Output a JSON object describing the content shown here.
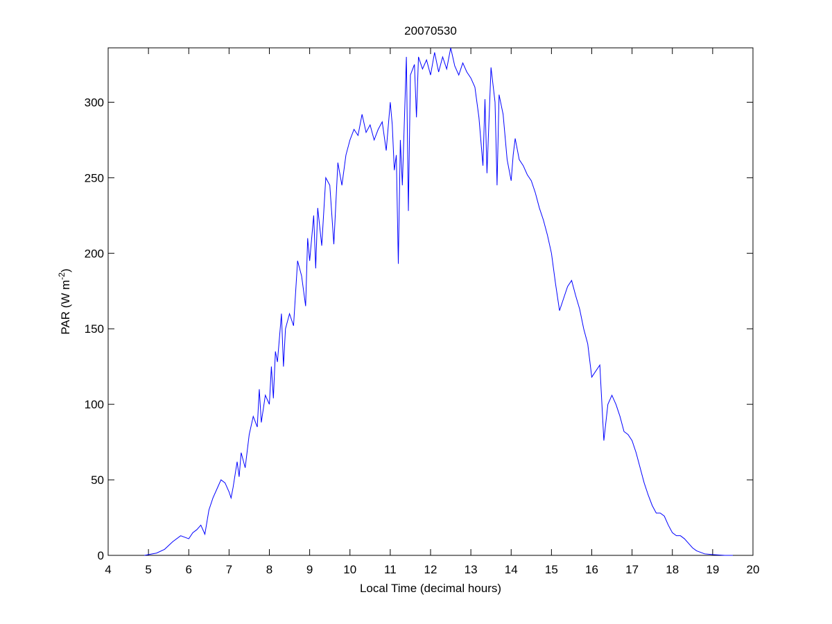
{
  "chart_data": {
    "type": "line",
    "title": "20070530",
    "x_label": "Local Time (decimal hours)",
    "y_label": {
      "text": "PAR (W m",
      "superscript": "-2",
      "suffix": ")"
    },
    "xlim": [
      4,
      20
    ],
    "xticks": [
      4,
      5,
      6,
      7,
      8,
      9,
      10,
      11,
      12,
      13,
      14,
      15,
      16,
      17,
      18,
      19,
      20
    ],
    "ylim": [
      0,
      336
    ],
    "yticks": [
      0,
      50,
      100,
      150,
      200,
      250,
      300
    ],
    "grid": false,
    "series": [
      {
        "color": "#0000ff",
        "x": [
          4.9,
          5.0,
          5.2,
          5.4,
          5.6,
          5.8,
          6.0,
          6.1,
          6.2,
          6.3,
          6.4,
          6.5,
          6.6,
          6.7,
          6.8,
          6.9,
          7.0,
          7.05,
          7.1,
          7.2,
          7.25,
          7.3,
          7.4,
          7.5,
          7.6,
          7.7,
          7.75,
          7.8,
          7.9,
          8.0,
          8.05,
          8.1,
          8.15,
          8.2,
          8.3,
          8.35,
          8.4,
          8.5,
          8.6,
          8.7,
          8.8,
          8.9,
          8.95,
          9.0,
          9.1,
          9.15,
          9.2,
          9.3,
          9.4,
          9.5,
          9.6,
          9.7,
          9.8,
          9.9,
          10.0,
          10.1,
          10.2,
          10.3,
          10.4,
          10.5,
          10.6,
          10.7,
          10.8,
          10.9,
          11.0,
          11.05,
          11.1,
          11.15,
          11.2,
          11.25,
          11.3,
          11.4,
          11.45,
          11.5,
          11.6,
          11.65,
          11.7,
          11.8,
          11.9,
          12.0,
          12.1,
          12.2,
          12.3,
          12.4,
          12.5,
          12.6,
          12.7,
          12.8,
          12.9,
          13.0,
          13.1,
          13.2,
          13.3,
          13.35,
          13.4,
          13.5,
          13.6,
          13.65,
          13.7,
          13.8,
          13.9,
          14.0,
          14.05,
          14.1,
          14.2,
          14.3,
          14.4,
          14.5,
          14.6,
          14.7,
          14.8,
          14.9,
          15.0,
          15.1,
          15.2,
          15.3,
          15.4,
          15.5,
          15.6,
          15.7,
          15.8,
          15.9,
          16.0,
          16.1,
          16.2,
          16.3,
          16.4,
          16.5,
          16.6,
          16.7,
          16.8,
          16.9,
          17.0,
          17.1,
          17.2,
          17.3,
          17.4,
          17.5,
          17.6,
          17.7,
          17.8,
          17.9,
          18.0,
          18.1,
          18.2,
          18.3,
          18.4,
          18.5,
          18.6,
          18.8,
          19.0,
          19.3,
          19.5
        ],
        "values": [
          0,
          0.5,
          1.5,
          4,
          9,
          13,
          11,
          15,
          17,
          20,
          14,
          30,
          38,
          44,
          50,
          48,
          42,
          38,
          45,
          62,
          52,
          68,
          58,
          80,
          92,
          85,
          110,
          88,
          106,
          100,
          125,
          104,
          135,
          128,
          160,
          125,
          150,
          160,
          152,
          195,
          185,
          165,
          210,
          195,
          225,
          190,
          230,
          205,
          250,
          245,
          206,
          260,
          245,
          265,
          275,
          282,
          278,
          292,
          280,
          285,
          275,
          282,
          287,
          268,
          300,
          285,
          255,
          265,
          193,
          275,
          245,
          330,
          228,
          318,
          325,
          290,
          330,
          322,
          328,
          318,
          333,
          320,
          330,
          322,
          336,
          324,
          318,
          326,
          320,
          316,
          310,
          290,
          258,
          302,
          253,
          323,
          300,
          245,
          305,
          292,
          262,
          248,
          265,
          276,
          262,
          258,
          252,
          248,
          240,
          230,
          222,
          212,
          200,
          180,
          162,
          170,
          178,
          182,
          172,
          163,
          150,
          140,
          118,
          122,
          126,
          76,
          100,
          106,
          100,
          92,
          82,
          80,
          76,
          68,
          58,
          48,
          40,
          33,
          28,
          28,
          26,
          20,
          15,
          13,
          13,
          11,
          8,
          5,
          3,
          1,
          0.5,
          0,
          0
        ]
      }
    ]
  }
}
